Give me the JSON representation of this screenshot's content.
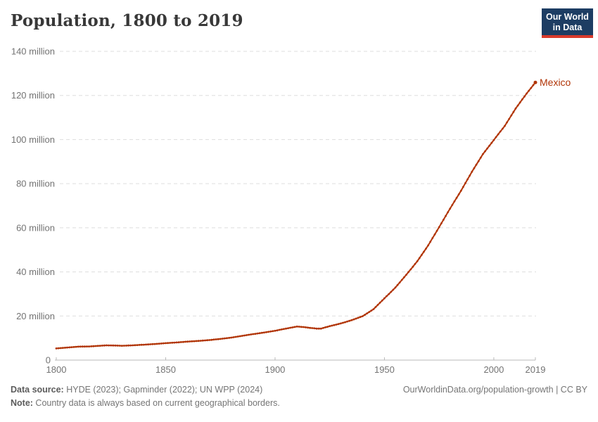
{
  "header": {
    "title": "Population, 1800 to 2019",
    "logo": {
      "line1": "Our World",
      "line2": "in Data",
      "bg_color": "#1d3d63",
      "accent_color": "#d93a2b"
    }
  },
  "chart_data": {
    "type": "line",
    "title": "Population, 1800 to 2019",
    "entity": "Mexico",
    "unit": "million people",
    "line_color": "#b13507",
    "grid": true,
    "grid_color": "#dddddd",
    "axis_color": "#b9b9b9",
    "tick_label_color": "#737373",
    "xlim": [
      1800,
      2019
    ],
    "ylim": [
      0,
      140
    ],
    "x_ticks": [
      1800,
      1850,
      1900,
      1950,
      2000,
      2019
    ],
    "y_ticks": [
      0,
      20,
      40,
      60,
      80,
      100,
      120,
      140
    ],
    "y_tick_suffix": " million",
    "zero_label": "0",
    "end_label": "Mexico",
    "series": [
      {
        "name": "Mexico",
        "points": [
          [
            1800,
            5.3
          ],
          [
            1805,
            5.7
          ],
          [
            1810,
            6.1
          ],
          [
            1815,
            6.2
          ],
          [
            1820,
            6.5
          ],
          [
            1823,
            6.7
          ],
          [
            1827,
            6.6
          ],
          [
            1830,
            6.5
          ],
          [
            1835,
            6.7
          ],
          [
            1840,
            7.0
          ],
          [
            1845,
            7.3
          ],
          [
            1850,
            7.7
          ],
          [
            1855,
            8.0
          ],
          [
            1860,
            8.4
          ],
          [
            1865,
            8.7
          ],
          [
            1870,
            9.1
          ],
          [
            1875,
            9.6
          ],
          [
            1880,
            10.2
          ],
          [
            1885,
            11.0
          ],
          [
            1890,
            11.8
          ],
          [
            1895,
            12.5
          ],
          [
            1900,
            13.3
          ],
          [
            1905,
            14.3
          ],
          [
            1910,
            15.2
          ],
          [
            1913,
            15.0
          ],
          [
            1916,
            14.6
          ],
          [
            1919,
            14.3
          ],
          [
            1921,
            14.3
          ],
          [
            1925,
            15.4
          ],
          [
            1930,
            16.6
          ],
          [
            1935,
            18.1
          ],
          [
            1940,
            19.9
          ],
          [
            1945,
            23.1
          ],
          [
            1950,
            28.0
          ],
          [
            1955,
            32.9
          ],
          [
            1960,
            38.7
          ],
          [
            1965,
            44.8
          ],
          [
            1970,
            52.0
          ],
          [
            1975,
            60.3
          ],
          [
            1980,
            68.7
          ],
          [
            1985,
            76.8
          ],
          [
            1990,
            85.4
          ],
          [
            1995,
            93.4
          ],
          [
            2000,
            99.8
          ],
          [
            2005,
            106.2
          ],
          [
            2010,
            114.1
          ],
          [
            2015,
            120.9
          ],
          [
            2019,
            125.9
          ]
        ]
      }
    ]
  },
  "footer": {
    "source_label": "Data source:",
    "source_text": " HYDE (2023); Gapminder (2022); UN WPP (2024)",
    "note_label": "Note:",
    "note_text": " Country data is always based on current geographical borders.",
    "credit": "OurWorldinData.org/population-growth | CC BY"
  }
}
